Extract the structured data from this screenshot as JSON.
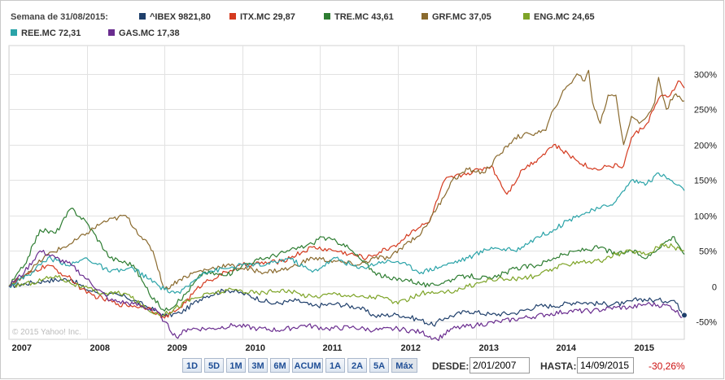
{
  "legend": {
    "title": "Semana de 31/08/2015:",
    "items": [
      {
        "label": "^IBEX 9821,80",
        "color": "#1f3f6b"
      },
      {
        "label": "ITX.MC 29,87",
        "color": "#d43a1f"
      },
      {
        "label": "TRE.MC 43,61",
        "color": "#2e7d32"
      },
      {
        "label": "GRF.MC 37,05",
        "color": "#8a6a2e"
      },
      {
        "label": "ENG.MC 24,65",
        "color": "#7ea428"
      },
      {
        "label": "REE.MC 72,31",
        "color": "#2aa3a8"
      },
      {
        "label": "GAS.MC 17,38",
        "color": "#6a2d8f"
      }
    ]
  },
  "copyright": "© 2015 Yahoo! Inc.",
  "chart_data": {
    "type": "line",
    "title": "",
    "xlabel": "",
    "ylabel": "",
    "x_range": [
      2007.0,
      2015.68
    ],
    "ylim": [
      -75,
      340
    ],
    "x_ticks": [
      "2007",
      "2008",
      "2009",
      "2010",
      "2011",
      "2012",
      "2013",
      "2014",
      "2015"
    ],
    "y_ticks": [
      300,
      250,
      200,
      150,
      100,
      50,
      0,
      -50
    ],
    "y_tick_labels": [
      "300%",
      "250%",
      "200%",
      "150%",
      "100%",
      "50%",
      "0",
      "-50%"
    ],
    "series": [
      {
        "name": "^IBEX",
        "color": "#1f3f6b",
        "points": [
          [
            2007.0,
            0
          ],
          [
            2007.3,
            5
          ],
          [
            2007.5,
            8
          ],
          [
            2007.8,
            10
          ],
          [
            2008.0,
            -5
          ],
          [
            2008.2,
            -10
          ],
          [
            2008.5,
            -15
          ],
          [
            2008.8,
            -30
          ],
          [
            2009.0,
            -42
          ],
          [
            2009.2,
            -38
          ],
          [
            2009.5,
            -15
          ],
          [
            2009.8,
            -5
          ],
          [
            2010.0,
            -10
          ],
          [
            2010.4,
            -25
          ],
          [
            2010.7,
            -20
          ],
          [
            2010.9,
            -28
          ],
          [
            2011.2,
            -25
          ],
          [
            2011.5,
            -30
          ],
          [
            2011.7,
            -42
          ],
          [
            2012.0,
            -40
          ],
          [
            2012.3,
            -48
          ],
          [
            2012.45,
            -55
          ],
          [
            2012.6,
            -45
          ],
          [
            2012.9,
            -35
          ],
          [
            2013.2,
            -40
          ],
          [
            2013.5,
            -38
          ],
          [
            2013.8,
            -28
          ],
          [
            2014.0,
            -28
          ],
          [
            2014.3,
            -22
          ],
          [
            2014.6,
            -25
          ],
          [
            2014.9,
            -25
          ],
          [
            2015.1,
            -18
          ],
          [
            2015.3,
            -20
          ],
          [
            2015.55,
            -20
          ],
          [
            2015.68,
            -41
          ]
        ]
      },
      {
        "name": "ITX.MC",
        "color": "#d43a1f",
        "points": [
          [
            2007.0,
            0
          ],
          [
            2007.3,
            20
          ],
          [
            2007.5,
            30
          ],
          [
            2007.8,
            10
          ],
          [
            2008.0,
            -10
          ],
          [
            2008.4,
            -25
          ],
          [
            2008.8,
            -30
          ],
          [
            2009.0,
            -45
          ],
          [
            2009.2,
            -30
          ],
          [
            2009.5,
            5
          ],
          [
            2009.8,
            20
          ],
          [
            2010.0,
            30
          ],
          [
            2010.5,
            35
          ],
          [
            2010.9,
            55
          ],
          [
            2011.2,
            50
          ],
          [
            2011.6,
            40
          ],
          [
            2011.9,
            55
          ],
          [
            2012.0,
            60
          ],
          [
            2012.2,
            80
          ],
          [
            2012.4,
            90
          ],
          [
            2012.6,
            150
          ],
          [
            2012.9,
            160
          ],
          [
            2013.2,
            170
          ],
          [
            2013.4,
            130
          ],
          [
            2013.6,
            165
          ],
          [
            2013.8,
            180
          ],
          [
            2014.0,
            200
          ],
          [
            2014.2,
            185
          ],
          [
            2014.5,
            165
          ],
          [
            2014.7,
            170
          ],
          [
            2014.9,
            170
          ],
          [
            2015.0,
            210
          ],
          [
            2015.2,
            230
          ],
          [
            2015.35,
            265
          ],
          [
            2015.5,
            270
          ],
          [
            2015.6,
            290
          ],
          [
            2015.68,
            280
          ]
        ]
      },
      {
        "name": "TRE.MC",
        "color": "#2e7d32",
        "points": [
          [
            2007.0,
            0
          ],
          [
            2007.2,
            30
          ],
          [
            2007.4,
            80
          ],
          [
            2007.6,
            75
          ],
          [
            2007.8,
            110
          ],
          [
            2008.0,
            90
          ],
          [
            2008.3,
            40
          ],
          [
            2008.6,
            30
          ],
          [
            2008.8,
            -10
          ],
          [
            2009.0,
            -35
          ],
          [
            2009.2,
            -20
          ],
          [
            2009.5,
            20
          ],
          [
            2009.8,
            15
          ],
          [
            2010.0,
            30
          ],
          [
            2010.3,
            40
          ],
          [
            2010.6,
            50
          ],
          [
            2010.9,
            60
          ],
          [
            2011.0,
            70
          ],
          [
            2011.3,
            60
          ],
          [
            2011.5,
            40
          ],
          [
            2011.7,
            20
          ],
          [
            2011.9,
            10
          ],
          [
            2012.1,
            10
          ],
          [
            2012.4,
            0
          ],
          [
            2012.7,
            10
          ],
          [
            2012.9,
            15
          ],
          [
            2013.2,
            10
          ],
          [
            2013.5,
            25
          ],
          [
            2013.8,
            30
          ],
          [
            2014.0,
            40
          ],
          [
            2014.3,
            50
          ],
          [
            2014.6,
            55
          ],
          [
            2014.8,
            45
          ],
          [
            2015.0,
            50
          ],
          [
            2015.2,
            40
          ],
          [
            2015.4,
            60
          ],
          [
            2015.55,
            70
          ],
          [
            2015.68,
            45
          ]
        ]
      },
      {
        "name": "GRF.MC",
        "color": "#8a6a2e",
        "points": [
          [
            2007.0,
            0
          ],
          [
            2007.3,
            25
          ],
          [
            2007.5,
            45
          ],
          [
            2007.8,
            60
          ],
          [
            2008.0,
            75
          ],
          [
            2008.2,
            90
          ],
          [
            2008.5,
            100
          ],
          [
            2008.7,
            70
          ],
          [
            2008.85,
            50
          ],
          [
            2009.0,
            -5
          ],
          [
            2009.2,
            10
          ],
          [
            2009.4,
            20
          ],
          [
            2009.6,
            25
          ],
          [
            2009.8,
            30
          ],
          [
            2010.0,
            25
          ],
          [
            2010.3,
            20
          ],
          [
            2010.6,
            25
          ],
          [
            2010.9,
            40
          ],
          [
            2011.2,
            35
          ],
          [
            2011.5,
            30
          ],
          [
            2011.7,
            40
          ],
          [
            2011.9,
            40
          ],
          [
            2012.1,
            60
          ],
          [
            2012.3,
            75
          ],
          [
            2012.5,
            110
          ],
          [
            2012.7,
            150
          ],
          [
            2012.9,
            165
          ],
          [
            2013.1,
            160
          ],
          [
            2013.3,
            185
          ],
          [
            2013.5,
            210
          ],
          [
            2013.7,
            215
          ],
          [
            2013.9,
            220
          ],
          [
            2014.0,
            250
          ],
          [
            2014.1,
            270
          ],
          [
            2014.3,
            300
          ],
          [
            2014.4,
            290
          ],
          [
            2014.45,
            305
          ],
          [
            2014.5,
            260
          ],
          [
            2014.6,
            230
          ],
          [
            2014.7,
            270
          ],
          [
            2014.8,
            270
          ],
          [
            2014.9,
            200
          ],
          [
            2015.0,
            240
          ],
          [
            2015.1,
            230
          ],
          [
            2015.2,
            240
          ],
          [
            2015.3,
            260
          ],
          [
            2015.35,
            295
          ],
          [
            2015.45,
            250
          ],
          [
            2015.55,
            270
          ],
          [
            2015.68,
            262
          ]
        ]
      },
      {
        "name": "ENG.MC",
        "color": "#7ea428",
        "points": [
          [
            2007.0,
            0
          ],
          [
            2007.3,
            5
          ],
          [
            2007.6,
            15
          ],
          [
            2007.9,
            0
          ],
          [
            2008.2,
            -10
          ],
          [
            2008.5,
            -10
          ],
          [
            2008.8,
            -35
          ],
          [
            2009.0,
            -40
          ],
          [
            2009.3,
            -20
          ],
          [
            2009.6,
            -10
          ],
          [
            2009.9,
            -5
          ],
          [
            2010.2,
            -10
          ],
          [
            2010.5,
            -5
          ],
          [
            2010.9,
            -15
          ],
          [
            2011.2,
            -10
          ],
          [
            2011.5,
            -15
          ],
          [
            2011.8,
            -15
          ],
          [
            2012.0,
            -25
          ],
          [
            2012.3,
            -10
          ],
          [
            2012.6,
            -10
          ],
          [
            2012.9,
            0
          ],
          [
            2013.2,
            10
          ],
          [
            2013.5,
            10
          ],
          [
            2013.8,
            15
          ],
          [
            2014.0,
            25
          ],
          [
            2014.3,
            35
          ],
          [
            2014.6,
            35
          ],
          [
            2014.8,
            45
          ],
          [
            2015.0,
            50
          ],
          [
            2015.2,
            45
          ],
          [
            2015.4,
            60
          ],
          [
            2015.55,
            55
          ],
          [
            2015.68,
            50
          ]
        ]
      },
      {
        "name": "REE.MC",
        "color": "#2aa3a8",
        "points": [
          [
            2007.0,
            0
          ],
          [
            2007.3,
            20
          ],
          [
            2007.5,
            40
          ],
          [
            2007.8,
            30
          ],
          [
            2008.0,
            40
          ],
          [
            2008.3,
            20
          ],
          [
            2008.6,
            25
          ],
          [
            2008.8,
            10
          ],
          [
            2009.0,
            -5
          ],
          [
            2009.2,
            -10
          ],
          [
            2009.5,
            20
          ],
          [
            2009.8,
            25
          ],
          [
            2010.0,
            30
          ],
          [
            2010.3,
            30
          ],
          [
            2010.6,
            40
          ],
          [
            2010.9,
            20
          ],
          [
            2011.2,
            40
          ],
          [
            2011.5,
            25
          ],
          [
            2011.8,
            35
          ],
          [
            2012.0,
            35
          ],
          [
            2012.3,
            20
          ],
          [
            2012.6,
            30
          ],
          [
            2012.9,
            40
          ],
          [
            2013.2,
            55
          ],
          [
            2013.5,
            50
          ],
          [
            2013.8,
            70
          ],
          [
            2014.0,
            80
          ],
          [
            2014.3,
            100
          ],
          [
            2014.6,
            110
          ],
          [
            2014.8,
            120
          ],
          [
            2015.0,
            150
          ],
          [
            2015.2,
            145
          ],
          [
            2015.35,
            160
          ],
          [
            2015.5,
            150
          ],
          [
            2015.68,
            135
          ]
        ]
      },
      {
        "name": "GAS.MC",
        "color": "#6a2d8f",
        "points": [
          [
            2007.0,
            0
          ],
          [
            2007.2,
            20
          ],
          [
            2007.4,
            50
          ],
          [
            2007.6,
            40
          ],
          [
            2007.8,
            30
          ],
          [
            2008.0,
            10
          ],
          [
            2008.3,
            -20
          ],
          [
            2008.6,
            -25
          ],
          [
            2008.9,
            -35
          ],
          [
            2009.0,
            -50
          ],
          [
            2009.15,
            -72
          ],
          [
            2009.3,
            -60
          ],
          [
            2009.6,
            -60
          ],
          [
            2009.9,
            -55
          ],
          [
            2010.2,
            -60
          ],
          [
            2010.5,
            -62
          ],
          [
            2010.8,
            -55
          ],
          [
            2011.1,
            -60
          ],
          [
            2011.4,
            -58
          ],
          [
            2011.7,
            -62
          ],
          [
            2012.0,
            -60
          ],
          [
            2012.3,
            -65
          ],
          [
            2012.5,
            -75
          ],
          [
            2012.7,
            -60
          ],
          [
            2013.0,
            -55
          ],
          [
            2013.3,
            -50
          ],
          [
            2013.6,
            -45
          ],
          [
            2013.9,
            -40
          ],
          [
            2014.2,
            -35
          ],
          [
            2014.5,
            -35
          ],
          [
            2014.8,
            -30
          ],
          [
            2015.0,
            -30
          ],
          [
            2015.2,
            -25
          ],
          [
            2015.5,
            -28
          ],
          [
            2015.68,
            -45
          ]
        ]
      }
    ]
  },
  "controls": {
    "ranges": [
      "1D",
      "5D",
      "1M",
      "3M",
      "6M",
      "ACUM",
      "1A",
      "2A",
      "5A",
      "Máx"
    ],
    "active_range": "Máx",
    "from_label": "DESDE:",
    "from_value": "2/01/2007",
    "to_label": "HASTA:",
    "to_value": "14/09/2015",
    "change": "-30,26%"
  }
}
